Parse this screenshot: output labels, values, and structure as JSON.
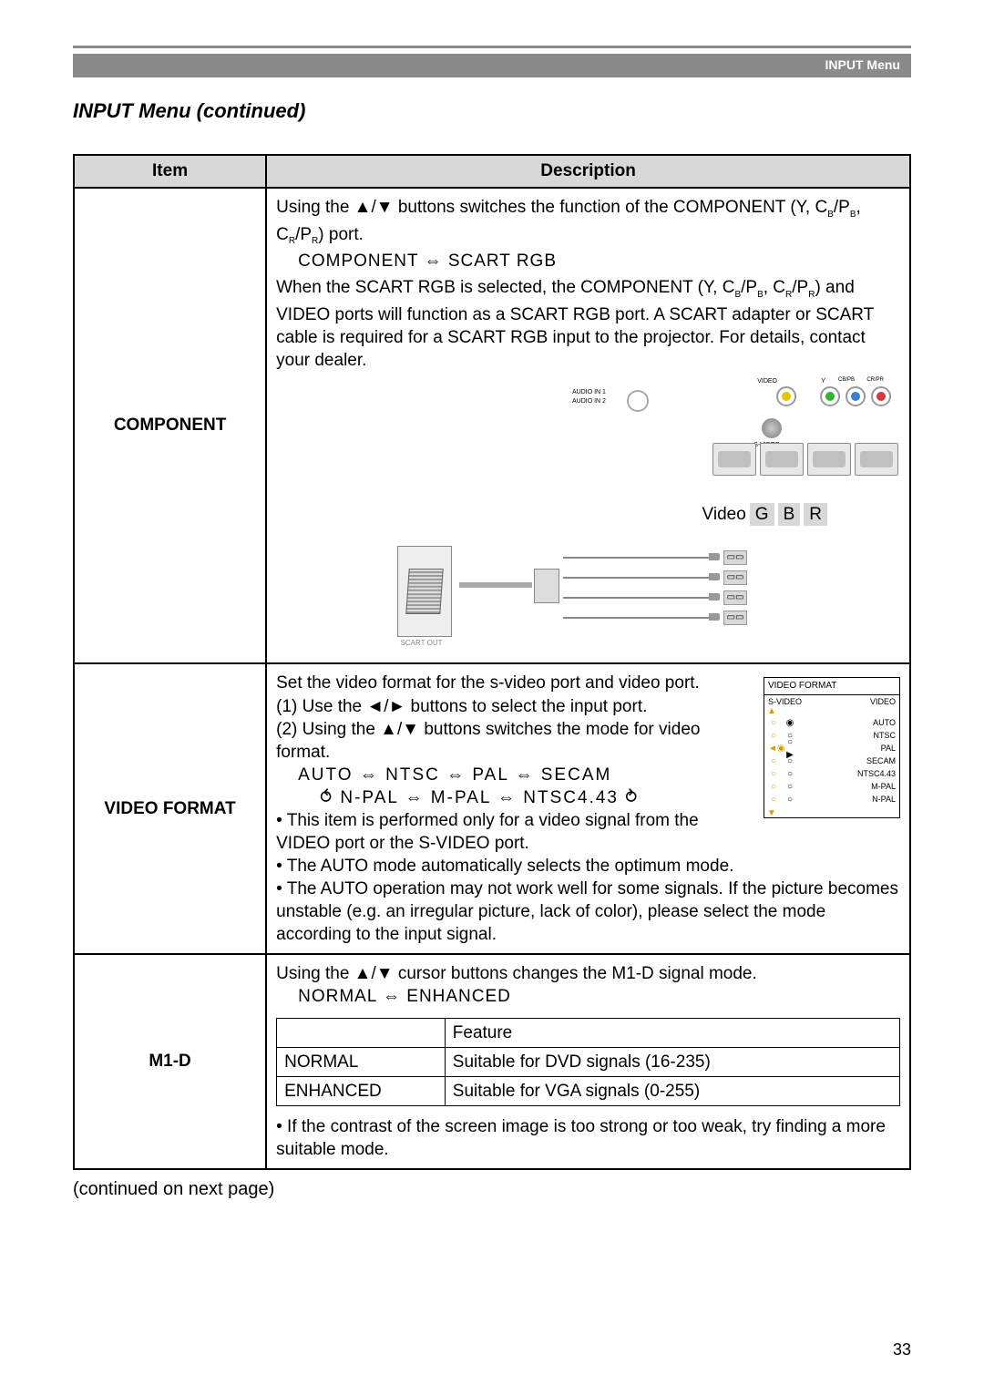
{
  "header": {
    "menuLabel": "INPUT Menu"
  },
  "title": "INPUT Menu (continued)",
  "table": {
    "headers": {
      "item": "Item",
      "description": "Description"
    },
    "rows": {
      "component": {
        "name": "COMPONENT",
        "p1a": "Using the ▲/▼ buttons switches the function of the COMPONENT (Y, C",
        "p1b": "B",
        "p1c": "/P",
        "p1d": "B",
        "p1e": ", C",
        "p1f": "R",
        "p1g": "/P",
        "p1h": "R",
        "p1i": ") port.",
        "scart": "COMPONENT ⇔ SCART RGB",
        "p2a": "When the SCART RGB is selected, the COMPONENT (Y, C",
        "p2b": "B",
        "p2c": "/P",
        "p2d": "B",
        "p2e": ", C",
        "p2f": "R",
        "p2g": "/P",
        "p2h": "R",
        "p2i": ") and VIDEO ports will function as a SCART RGB port. A SCART adapter or SCART cable is required for a SCART RGB input to the projector. For details, contact your dealer.",
        "gbr": {
          "v": "Video",
          "g": "G",
          "b": "B",
          "r": "R"
        },
        "rearLabels": {
          "audio1": "AUDIO IN 1",
          "audio2": "AUDIO IN 2",
          "video": "VIDEO",
          "y": "Y",
          "cb": "CB/PB",
          "cr": "CR/PR",
          "svideo": "S-VIDEO"
        },
        "scartOut": "SCART OUT"
      },
      "videoFormat": {
        "name": "VIDEO FORMAT",
        "p1": "Set the video format for the s-video port and video port.",
        "p2": "(1) Use the ◄/► buttons to select the input port.",
        "p3": "(2) Using the ▲/▼ buttons switches the mode for video format.",
        "formats1": "AUTO ⇔ NTSC ⇔ PAL ⇔ SECAM",
        "formats2": "⥀ N-PAL ⇔ M-PAL ⇔ NTSC4.43 ⥁",
        "p4": "• This item is performed only for a video signal from the VIDEO port or the S-VIDEO port.",
        "p5": "• The AUTO mode automatically selects the optimum mode.",
        "p6": "• The AUTO operation may not work well for some signals. If the picture becomes unstable (e.g. an irregular picture, lack of color), please select the mode according to the input signal.",
        "menu": {
          "title": "VIDEO FORMAT",
          "col1": "S-VIDEO",
          "col2": "VIDEO",
          "items": [
            "AUTO",
            "NTSC",
            "PAL",
            "SECAM",
            "NTSC4.43",
            "M-PAL",
            "N-PAL"
          ]
        }
      },
      "m1d": {
        "name": "M1-D",
        "p1": "Using the ▲/▼ cursor buttons changes the M1-D signal mode.",
        "modes": "NORMAL ⇔ ENHANCED",
        "inner": {
          "h2": "Feature",
          "r1c1": "NORMAL",
          "r1c2": "Suitable for DVD signals (16-235)",
          "r2c1": "ENHANCED",
          "r2c2": "Suitable for VGA signals (0-255)"
        },
        "p2": "• If the contrast of the screen image is too strong or too weak, try finding a more suitable mode."
      }
    }
  },
  "continued": "(continued on next page)",
  "pageNum": "33",
  "colors": {
    "yellow": "#e6c200",
    "green": "#2eb82e",
    "blue": "#3a7fd6",
    "red": "#d63a3a",
    "amber": "#d4a000"
  }
}
